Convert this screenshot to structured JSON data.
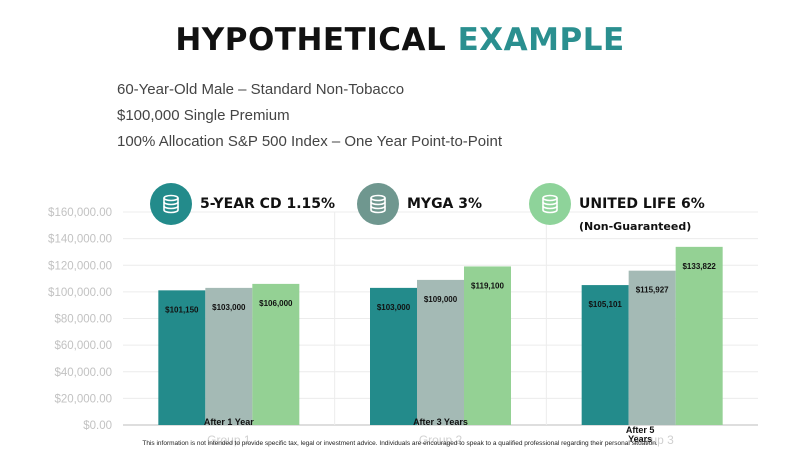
{
  "header": {
    "title_part1": "HYPOTHETICAL",
    "title_part2": "EXAMPLE",
    "subtitle_lines": [
      "60-Year-Old Male – Standard Non-Tobacco",
      "$100,000 Single Premium",
      "100% Allocation S&P 500 Index – One Year Point-to-Point"
    ]
  },
  "legend": [
    {
      "label": "5-YEAR CD 1.15%",
      "color": "#238b8b",
      "icon": "coin-stack-icon"
    },
    {
      "label": "MYGA 3%",
      "color": "#6f978f",
      "icon": "coin-stack-icon"
    },
    {
      "label": "UNITED LIFE 6%",
      "note": "(Non-Guaranteed)",
      "color": "#8ed39a",
      "icon": "coin-stack-icon"
    }
  ],
  "chart_data": {
    "type": "bar",
    "categories": [
      "Group 1",
      "Group 2",
      "Group 3"
    ],
    "category_labels": [
      "After 1 Year",
      "After 3 Years",
      "After 5 Years"
    ],
    "series": [
      {
        "name": "5-YEAR CD 1.15%",
        "values": [
          101150,
          103000,
          105101
        ],
        "labels": [
          "$101,150",
          "$103,000",
          "$105,101"
        ],
        "color": "#238b8b"
      },
      {
        "name": "MYGA 3%",
        "values": [
          103000,
          109000,
          115927
        ],
        "labels": [
          "$103,000",
          "$109,000",
          "$115,927"
        ],
        "color": "#a4bab5"
      },
      {
        "name": "UNITED LIFE 6%",
        "values": [
          106000,
          119100,
          133822
        ],
        "labels": [
          "$106,000",
          "$119,100",
          "$133,822"
        ],
        "color": "#94d194"
      }
    ],
    "ylim": [
      0,
      160000
    ],
    "yticks": [
      "$0.00",
      "$20,000.00",
      "$40,000.00",
      "$60,000.00",
      "$80,000.00",
      "$100,000.00",
      "$120,000.00",
      "$140,000.00",
      "$160,000.00"
    ],
    "grid": true,
    "legend_position": "top"
  },
  "footer": {
    "disclaimer": "This information is not intended to provide specific tax, legal or investment advice. Individuals are encouraged to speak to a qualified professional regarding their personal situation."
  }
}
